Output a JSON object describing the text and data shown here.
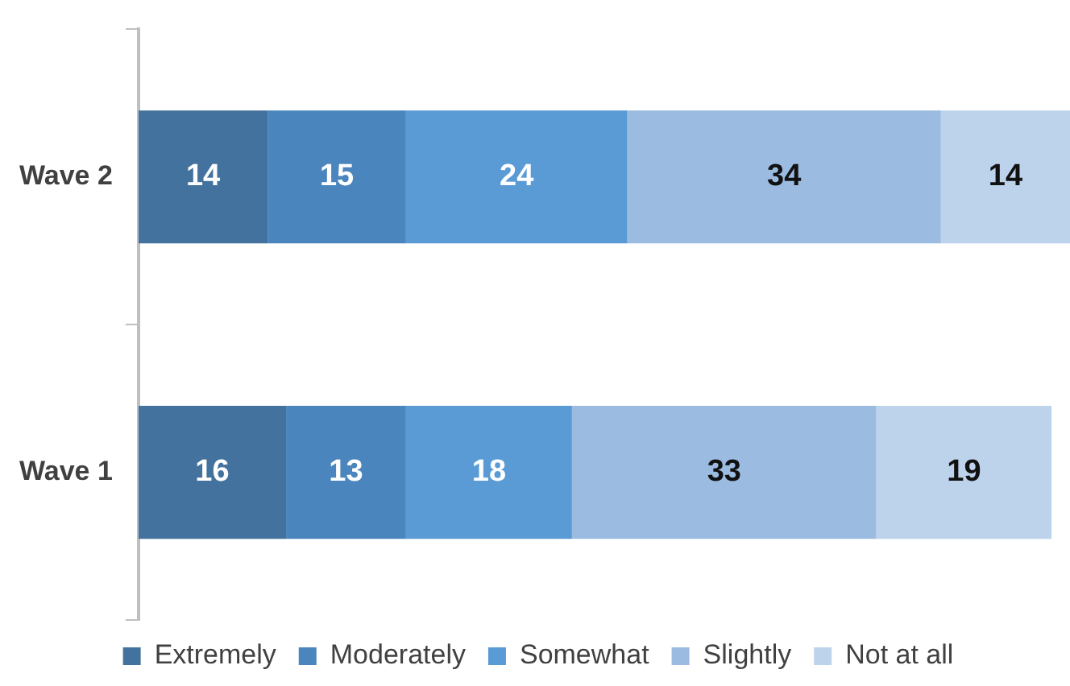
{
  "chart_data": {
    "type": "bar",
    "orientation": "horizontal",
    "stacked": true,
    "data_labels": true,
    "grid": false,
    "legend": "bottom",
    "categories": [
      "Wave 2",
      "Wave 1"
    ],
    "series": [
      {
        "name": "Extremely",
        "color": "#44729e",
        "values": [
          14,
          16
        ]
      },
      {
        "name": "Moderately",
        "color": "#4a86bd",
        "values": [
          15,
          13
        ]
      },
      {
        "name": "Somewhat",
        "color": "#5a9bd5",
        "values": [
          24,
          18
        ]
      },
      {
        "name": "Slightly",
        "color": "#9bbbe0",
        "values": [
          34,
          33
        ]
      },
      {
        "name": "Not at all",
        "color": "#bdd3ec",
        "values": [
          14,
          19
        ]
      }
    ]
  }
}
